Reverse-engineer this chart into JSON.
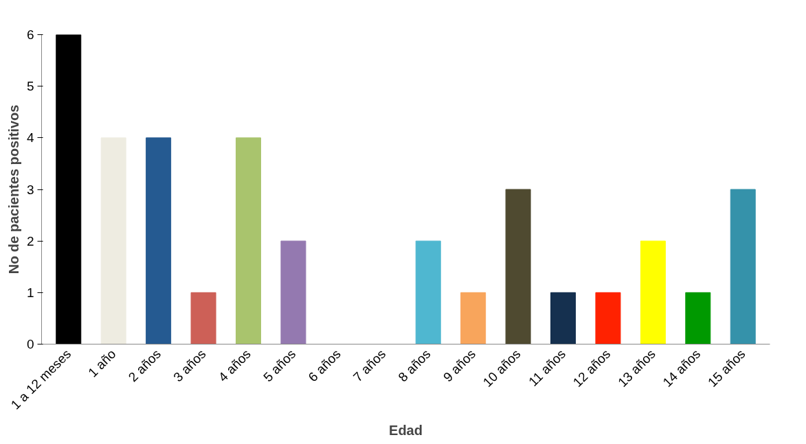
{
  "chart_data": {
    "type": "bar",
    "xlabel": "Edad",
    "ylabel": "No de pacientes positivos",
    "categories": [
      "1 a 12 meses",
      "1 año",
      "2 años",
      "3 años",
      "4 años",
      "5 años",
      "6 años",
      "7 años",
      "8 años",
      "9 años",
      "10 años",
      "11 años",
      "12 años",
      "13 años",
      "14 años",
      "15 años"
    ],
    "values": [
      6,
      4,
      4,
      1,
      4,
      2,
      0,
      0,
      2,
      1,
      3,
      1,
      1,
      2,
      1,
      3
    ],
    "colors": [
      "#000000",
      "#eeece1",
      "#255a91",
      "#cd6057",
      "#a9c46d",
      "#9479b0",
      "#1f4e79",
      "#1f4e79",
      "#4fb7d0",
      "#f8a55c",
      "#4f4a30",
      "#15304f",
      "#ff2200",
      "#ffff00",
      "#009900",
      "#3592aa"
    ],
    "ylim": [
      0,
      6
    ],
    "yticks": [
      0,
      1,
      2,
      3,
      4,
      5,
      6
    ],
    "grid": false
  }
}
